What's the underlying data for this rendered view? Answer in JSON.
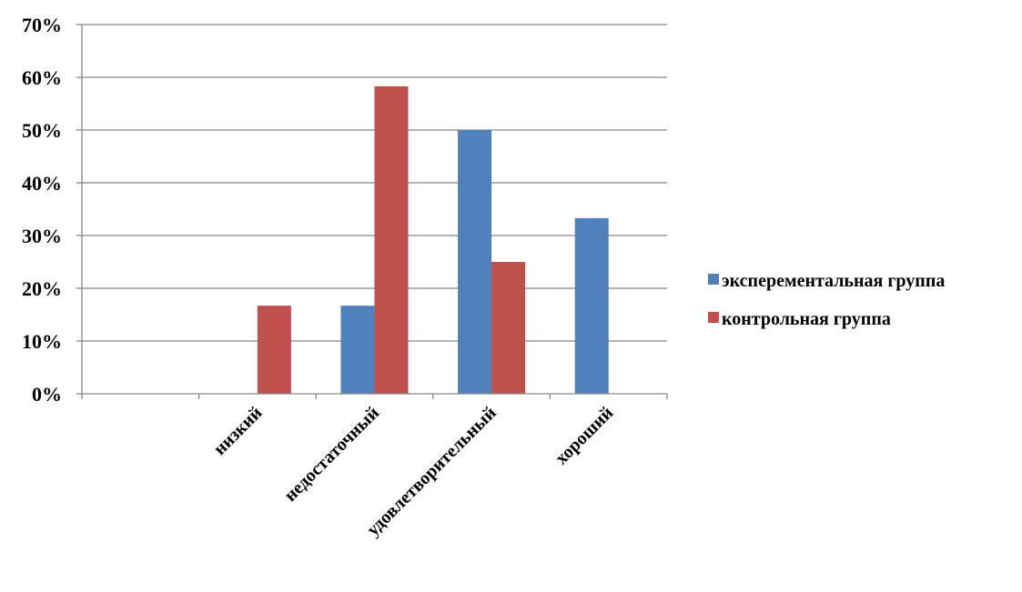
{
  "chart_data": {
    "type": "bar",
    "categories": [
      "",
      "низкий",
      "недостаточный",
      "удовлетворительный",
      "хороший"
    ],
    "series": [
      {
        "name": "эксперементальная группа",
        "color": "#4F81BD",
        "values": [
          0,
          0,
          16.7,
          50,
          33.3
        ]
      },
      {
        "name": "контрольная группа",
        "color": "#C0504D",
        "values": [
          0,
          16.7,
          58.3,
          25,
          0
        ]
      }
    ],
    "ylim": [
      0,
      70
    ],
    "yticks": [
      "0%",
      "10%",
      "20%",
      "30%",
      "40%",
      "50%",
      "60%",
      "70%"
    ],
    "ytick_values": [
      0,
      10,
      20,
      30,
      40,
      50,
      60,
      70
    ],
    "grid": true,
    "legend_position": "right",
    "title": "",
    "xlabel": "",
    "ylabel": ""
  }
}
